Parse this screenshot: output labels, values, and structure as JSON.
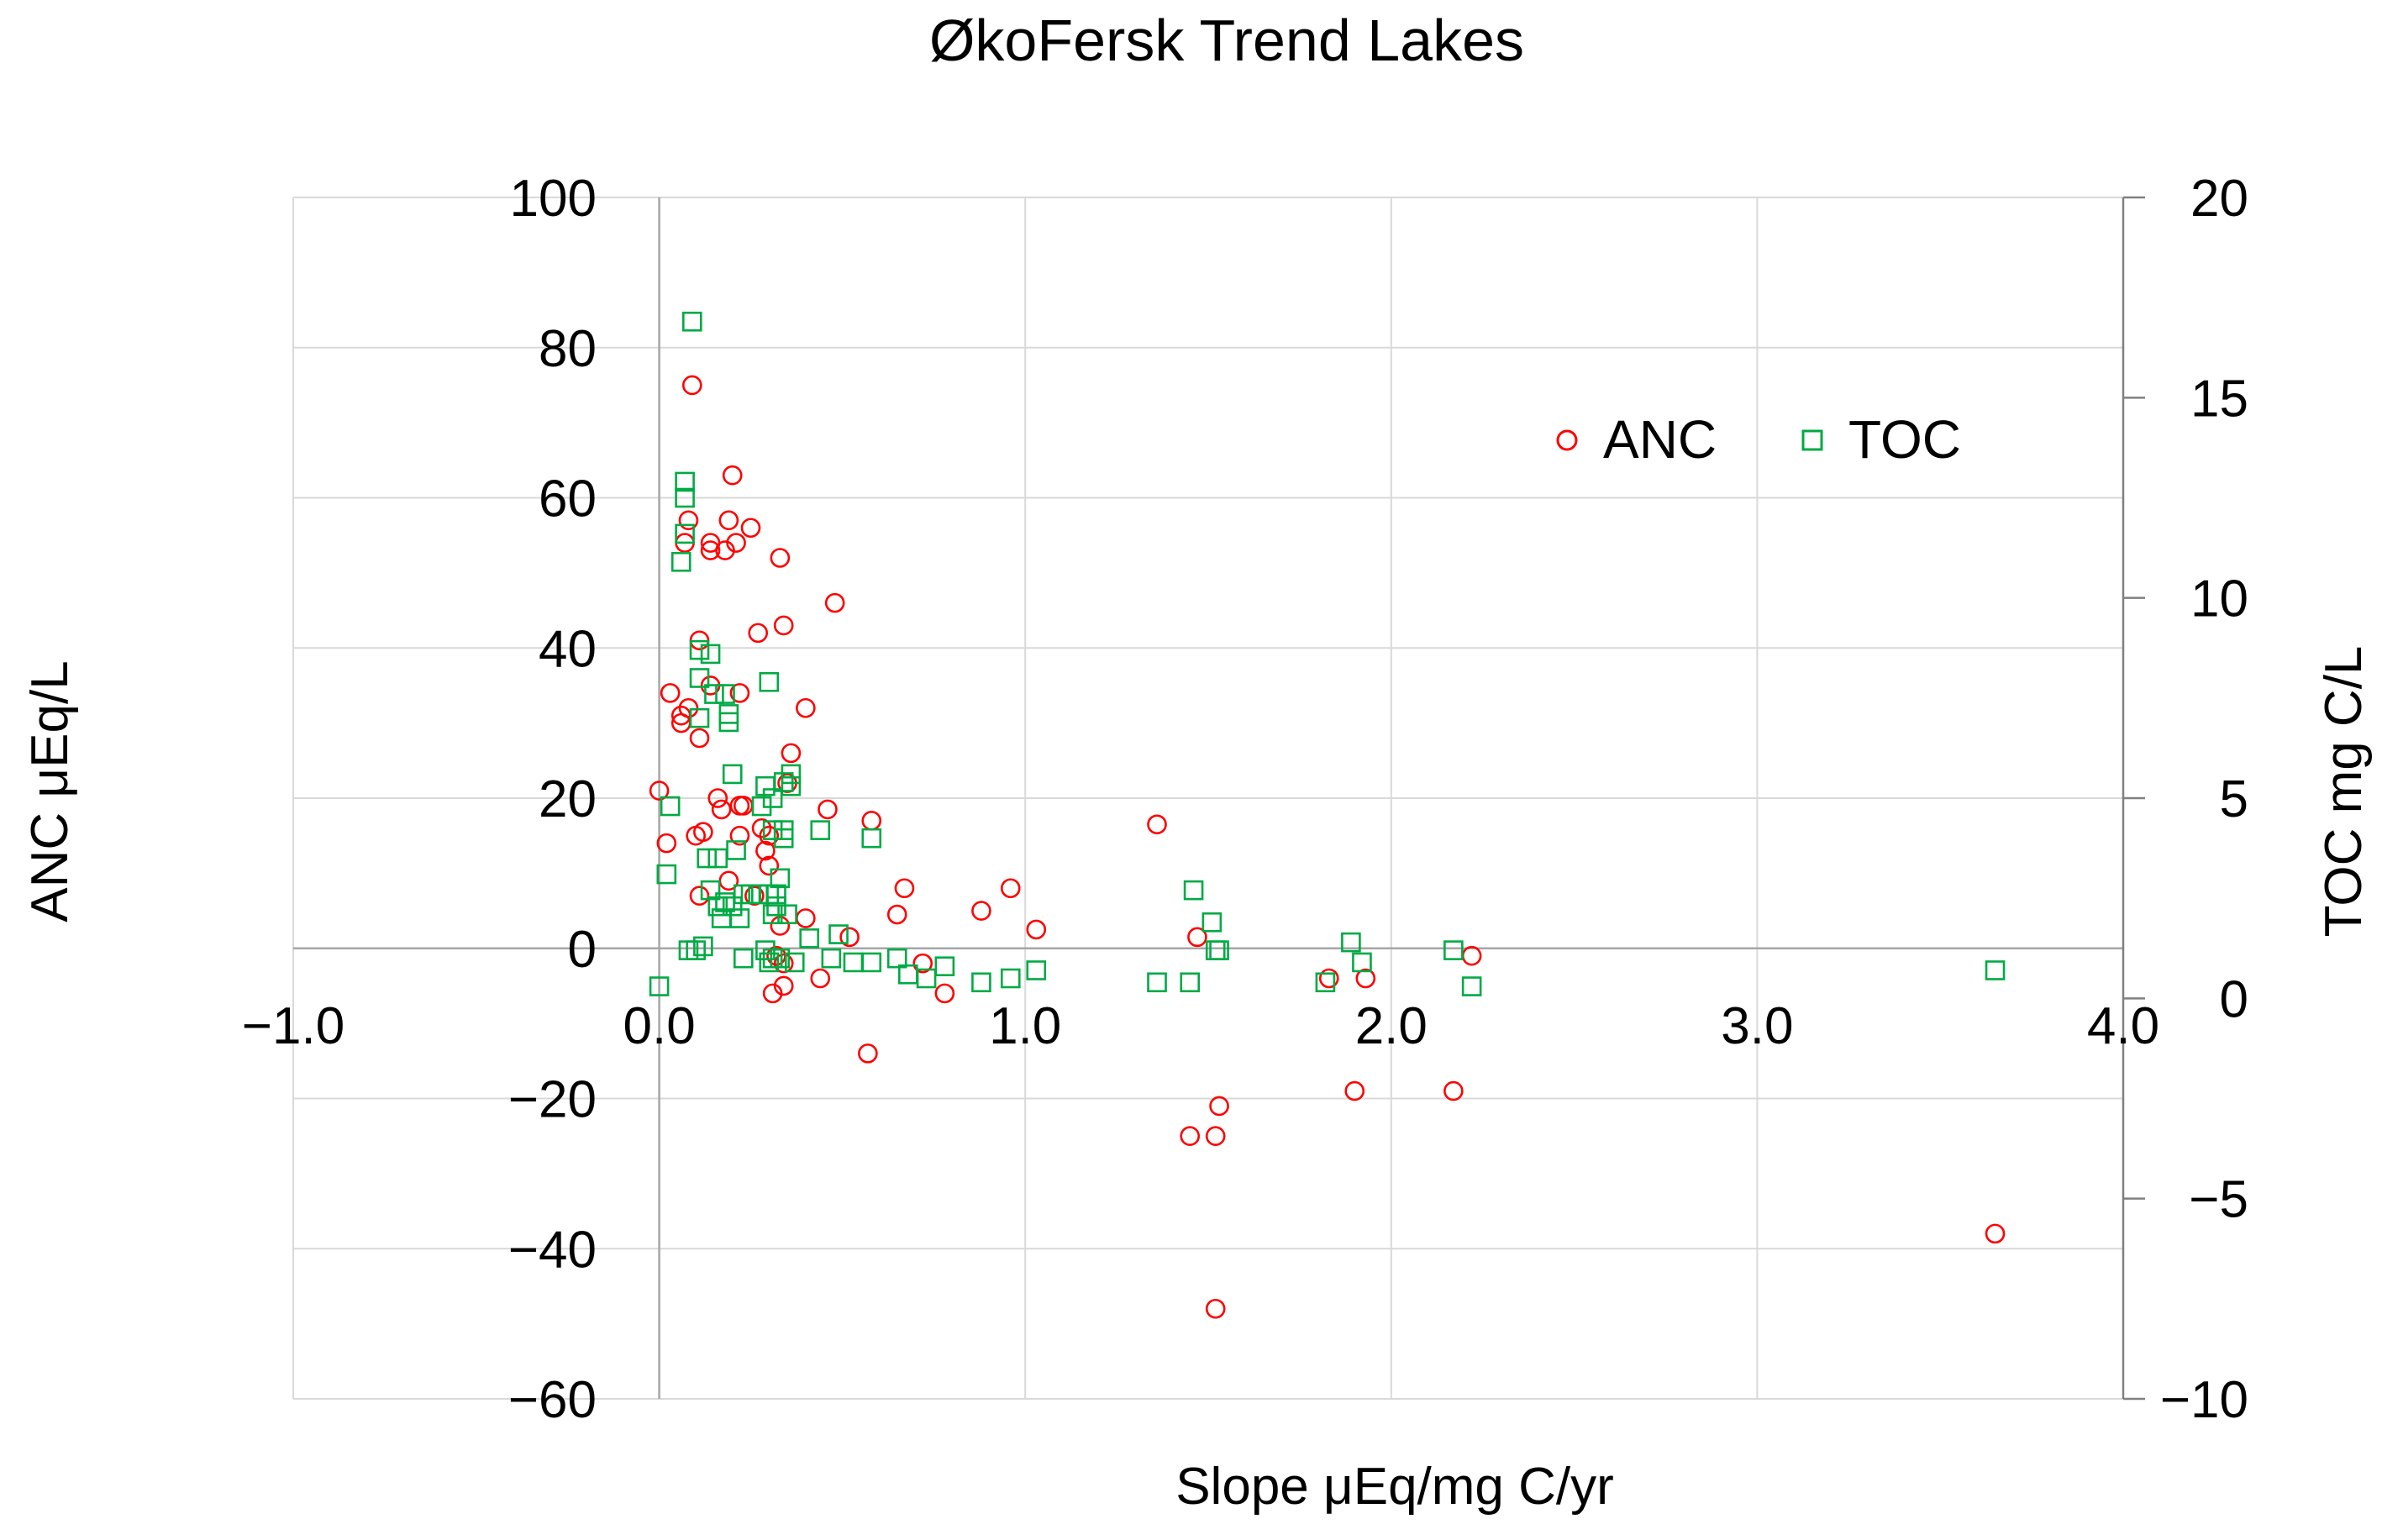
{
  "chart_data": {
    "type": "scatter",
    "title": "ØkoFersk Trend Lakes",
    "xlabel": "Slope μEq/mg C/yr",
    "ylabel": "ANC μEq/L",
    "y2label": "TOC mg C/L",
    "xlim": [
      -1.0,
      4.0
    ],
    "ylim": [
      -60,
      100
    ],
    "y2lim": [
      -10,
      20
    ],
    "grid": true,
    "legend_position": "top-right",
    "x_ticks": [
      -1.0,
      0.0,
      1.0,
      2.0,
      3.0,
      4.0
    ],
    "x_tick_labels": [
      "−1.0",
      "0.0",
      "1.0",
      "2.0",
      "3.0",
      "4.0"
    ],
    "y_ticks": [
      -60,
      -40,
      -20,
      0,
      20,
      40,
      60,
      80,
      100
    ],
    "y_tick_labels": [
      "−60",
      "−40",
      "−20",
      "0",
      "20",
      "40",
      "60",
      "80",
      "100"
    ],
    "y2_ticks": [
      -10,
      -5,
      0,
      5,
      10,
      15,
      20
    ],
    "y2_tick_labels": [
      "−10",
      "−5",
      "0",
      "5",
      "10",
      "15",
      "20"
    ],
    "series": [
      {
        "name": "ANC",
        "axis": "left",
        "marker": "circle",
        "color": "#ff0000",
        "points": [
          [
            0.0,
            21
          ],
          [
            0.02,
            14
          ],
          [
            0.03,
            34
          ],
          [
            0.06,
            31
          ],
          [
            0.06,
            30
          ],
          [
            0.07,
            54
          ],
          [
            0.08,
            57
          ],
          [
            0.08,
            32
          ],
          [
            0.09,
            75
          ],
          [
            0.1,
            15
          ],
          [
            0.11,
            41
          ],
          [
            0.11,
            28
          ],
          [
            0.11,
            7
          ],
          [
            0.12,
            15.5
          ],
          [
            0.14,
            53
          ],
          [
            0.14,
            54
          ],
          [
            0.14,
            35
          ],
          [
            0.16,
            20
          ],
          [
            0.17,
            18.5
          ],
          [
            0.18,
            53
          ],
          [
            0.19,
            57
          ],
          [
            0.19,
            9
          ],
          [
            0.2,
            63
          ],
          [
            0.21,
            54
          ],
          [
            0.22,
            34
          ],
          [
            0.22,
            15
          ],
          [
            0.22,
            19
          ],
          [
            0.23,
            19
          ],
          [
            0.25,
            56
          ],
          [
            0.26,
            7
          ],
          [
            0.27,
            42
          ],
          [
            0.28,
            16
          ],
          [
            0.29,
            13
          ],
          [
            0.3,
            11
          ],
          [
            0.3,
            15
          ],
          [
            0.31,
            -6
          ],
          [
            0.32,
            -1
          ],
          [
            0.33,
            3
          ],
          [
            0.33,
            52
          ],
          [
            0.34,
            43
          ],
          [
            0.34,
            -2
          ],
          [
            0.34,
            -5
          ],
          [
            0.35,
            22
          ],
          [
            0.36,
            26
          ],
          [
            0.4,
            32
          ],
          [
            0.4,
            4
          ],
          [
            0.44,
            -4
          ],
          [
            0.46,
            18.5
          ],
          [
            0.48,
            46
          ],
          [
            0.52,
            1.5
          ],
          [
            0.57,
            -14
          ],
          [
            0.58,
            17
          ],
          [
            0.65,
            4.5
          ],
          [
            0.67,
            8
          ],
          [
            0.72,
            -2
          ],
          [
            0.78,
            -6
          ],
          [
            0.88,
            5
          ],
          [
            0.96,
            8
          ],
          [
            1.03,
            2.5
          ],
          [
            1.36,
            16.5
          ],
          [
            1.45,
            -25
          ],
          [
            1.47,
            1.5
          ],
          [
            1.52,
            -25
          ],
          [
            1.52,
            -48
          ],
          [
            1.53,
            -21
          ],
          [
            1.83,
            -4
          ],
          [
            1.9,
            -19
          ],
          [
            1.93,
            -4
          ],
          [
            2.17,
            -19
          ],
          [
            2.22,
            -1
          ],
          [
            3.65,
            -38
          ]
        ]
      },
      {
        "name": "TOC",
        "axis": "right",
        "marker": "square",
        "color": "#00aa44",
        "points": [
          [
            0.0,
            0.3
          ],
          [
            0.02,
            3.1
          ],
          [
            0.03,
            4.8
          ],
          [
            0.06,
            10.9
          ],
          [
            0.07,
            12.9
          ],
          [
            0.07,
            12.5
          ],
          [
            0.07,
            11.6
          ],
          [
            0.08,
            1.2
          ],
          [
            0.09,
            16.9
          ],
          [
            0.1,
            1.2
          ],
          [
            0.11,
            8.7
          ],
          [
            0.11,
            8.0
          ],
          [
            0.11,
            7.0
          ],
          [
            0.12,
            1.3
          ],
          [
            0.13,
            3.5
          ],
          [
            0.14,
            2.7
          ],
          [
            0.14,
            8.6
          ],
          [
            0.15,
            7.6
          ],
          [
            0.16,
            2.3
          ],
          [
            0.16,
            3.5
          ],
          [
            0.17,
            2.0
          ],
          [
            0.18,
            2.4
          ],
          [
            0.18,
            7.6
          ],
          [
            0.19,
            6.9
          ],
          [
            0.19,
            7.1
          ],
          [
            0.2,
            2.3
          ],
          [
            0.2,
            5.6
          ],
          [
            0.21,
            3.7
          ],
          [
            0.22,
            2.0
          ],
          [
            0.23,
            2.6
          ],
          [
            0.23,
            1.0
          ],
          [
            0.25,
            2.6
          ],
          [
            0.27,
            2.6
          ],
          [
            0.28,
            4.8
          ],
          [
            0.29,
            1.2
          ],
          [
            0.29,
            5.3
          ],
          [
            0.3,
            0.9
          ],
          [
            0.3,
            2.6
          ],
          [
            0.3,
            7.9
          ],
          [
            0.31,
            1.0
          ],
          [
            0.31,
            4.2
          ],
          [
            0.31,
            5.0
          ],
          [
            0.31,
            2.1
          ],
          [
            0.32,
            2.6
          ],
          [
            0.32,
            2.3
          ],
          [
            0.33,
            3.0
          ],
          [
            0.33,
            1.0
          ],
          [
            0.34,
            4.2
          ],
          [
            0.34,
            4.0
          ],
          [
            0.34,
            5.4
          ],
          [
            0.35,
            2.1
          ],
          [
            0.36,
            5.3
          ],
          [
            0.36,
            5.6
          ],
          [
            0.37,
            0.9
          ],
          [
            0.41,
            1.5
          ],
          [
            0.44,
            4.2
          ],
          [
            0.47,
            1.0
          ],
          [
            0.49,
            1.6
          ],
          [
            0.53,
            0.9
          ],
          [
            0.58,
            0.9
          ],
          [
            0.58,
            4.0
          ],
          [
            0.65,
            1.0
          ],
          [
            0.68,
            0.6
          ],
          [
            0.73,
            0.5
          ],
          [
            0.78,
            0.8
          ],
          [
            0.88,
            0.4
          ],
          [
            0.96,
            0.5
          ],
          [
            1.03,
            0.7
          ],
          [
            1.36,
            0.4
          ],
          [
            1.45,
            0.4
          ],
          [
            1.46,
            2.7
          ],
          [
            1.51,
            1.9
          ],
          [
            1.52,
            1.2
          ],
          [
            1.53,
            1.2
          ],
          [
            1.82,
            0.4
          ],
          [
            1.89,
            1.4
          ],
          [
            1.92,
            0.9
          ],
          [
            2.17,
            1.2
          ],
          [
            2.22,
            0.3
          ],
          [
            3.65,
            0.7
          ]
        ]
      }
    ]
  }
}
